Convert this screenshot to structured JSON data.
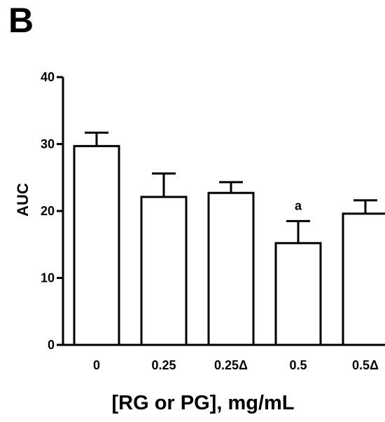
{
  "panel_label": "B",
  "chart_data": {
    "type": "bar",
    "categories": [
      "0",
      "0.25",
      "0.25Δ",
      "0.5",
      "0.5Δ"
    ],
    "values": [
      29.7,
      22.1,
      22.7,
      15.2,
      19.6
    ],
    "errors": [
      2.0,
      3.5,
      1.6,
      3.3,
      2.0
    ],
    "annotations": [
      "",
      "",
      "",
      "a",
      ""
    ],
    "xlabel": "[RG or PG], mg/mL",
    "ylabel": "AUC",
    "ylim": [
      0,
      40
    ],
    "yticks": [
      0,
      10,
      20,
      30,
      40
    ],
    "grid": false,
    "bar_fill": "#ffffff",
    "bar_stroke": "#000000"
  }
}
